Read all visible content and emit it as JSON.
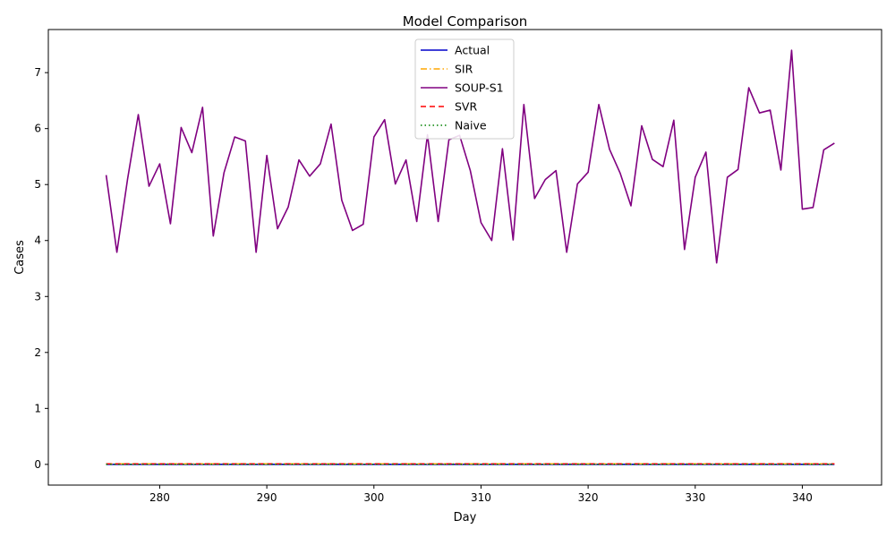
{
  "chart_data": {
    "type": "line",
    "title": "Model Comparison",
    "xlabel": "Day",
    "ylabel": "Cases",
    "xlim": [
      269.6,
      347.4
    ],
    "ylim": [
      -0.37,
      7.77
    ],
    "x_ticks": [
      280,
      290,
      300,
      310,
      320,
      330,
      340
    ],
    "y_ticks": [
      0,
      1,
      2,
      3,
      4,
      5,
      6,
      7
    ],
    "legend_position": "top-center",
    "grid": false,
    "x": [
      275,
      276,
      277,
      278,
      279,
      280,
      281,
      282,
      283,
      284,
      285,
      286,
      287,
      288,
      289,
      290,
      291,
      292,
      293,
      294,
      295,
      296,
      297,
      298,
      299,
      300,
      301,
      302,
      303,
      304,
      305,
      306,
      307,
      308,
      309,
      310,
      311,
      312,
      313,
      314,
      315,
      316,
      317,
      318,
      319,
      320,
      321,
      322,
      323,
      324,
      325,
      326,
      327,
      328,
      329,
      330,
      331,
      332,
      333,
      334,
      335,
      336,
      337,
      338,
      339,
      340,
      341,
      342,
      343
    ],
    "series": [
      {
        "name": "Actual",
        "color": "#0000cc",
        "dash": "solid",
        "values": [
          0,
          0,
          0,
          0,
          0,
          0,
          0,
          0,
          0,
          0,
          0,
          0,
          0,
          0,
          0,
          0,
          0,
          0,
          0,
          0,
          0,
          0,
          0,
          0,
          0,
          0,
          0,
          0,
          0,
          0,
          0,
          0,
          0,
          0,
          0,
          0,
          0,
          0,
          0,
          0,
          0,
          0,
          0,
          0,
          0,
          0,
          0,
          0,
          0,
          0,
          0,
          0,
          0,
          0,
          0,
          0,
          0,
          0,
          0,
          0,
          0,
          0,
          0,
          0,
          0,
          0,
          0,
          0,
          0
        ]
      },
      {
        "name": "SIR",
        "color": "#ffa500",
        "dash": "dashdot",
        "values": [
          0.01,
          0.01,
          0.01,
          0.01,
          0.01,
          0.01,
          0.01,
          0.01,
          0.01,
          0.01,
          0.01,
          0.01,
          0.01,
          0.01,
          0.01,
          0.01,
          0.01,
          0.01,
          0.01,
          0.01,
          0.01,
          0.01,
          0.01,
          0.01,
          0.01,
          0.01,
          0.01,
          0.01,
          0.01,
          0.01,
          0.01,
          0.01,
          0.01,
          0.01,
          0.01,
          0.01,
          0.01,
          0.01,
          0.01,
          0.01,
          0.01,
          0.01,
          0.01,
          0.01,
          0.01,
          0.01,
          0.01,
          0.01,
          0.01,
          0.01,
          0.01,
          0.01,
          0.01,
          0.01,
          0.01,
          0.01,
          0.01,
          0.01,
          0.01,
          0.01,
          0.01,
          0.01,
          0.01,
          0.01,
          0.01,
          0.01,
          0.01,
          0.01,
          0.01
        ]
      },
      {
        "name": "SOUP-S1",
        "color": "#800080",
        "dash": "solid",
        "values": [
          5.17,
          3.79,
          5.1,
          6.25,
          4.97,
          5.37,
          4.3,
          6.02,
          5.57,
          6.38,
          4.08,
          5.21,
          5.85,
          5.78,
          3.79,
          5.52,
          4.21,
          4.6,
          5.44,
          5.15,
          5.37,
          6.08,
          4.72,
          4.18,
          4.29,
          5.85,
          6.16,
          5.01,
          5.44,
          4.34,
          5.89,
          4.34,
          5.8,
          5.88,
          5.25,
          4.32,
          4.0,
          5.64,
          4.01,
          6.43,
          4.75,
          5.09,
          5.25,
          3.79,
          5.01,
          5.22,
          6.43,
          5.63,
          5.2,
          4.62,
          6.05,
          5.45,
          5.32,
          6.15,
          3.84,
          5.13,
          5.58,
          3.6,
          5.13,
          5.27,
          6.73,
          6.28,
          6.33,
          5.26,
          7.4,
          4.56,
          4.59,
          5.62,
          5.74
        ]
      },
      {
        "name": "SVR",
        "color": "#ff0000",
        "dash": "dashed",
        "values": [
          0.01,
          0.01,
          0.01,
          0.01,
          0.01,
          0.01,
          0.01,
          0.01,
          0.01,
          0.01,
          0.01,
          0.01,
          0.01,
          0.01,
          0.01,
          0.01,
          0.01,
          0.01,
          0.01,
          0.01,
          0.01,
          0.01,
          0.01,
          0.01,
          0.01,
          0.01,
          0.01,
          0.01,
          0.01,
          0.01,
          0.01,
          0.01,
          0.01,
          0.01,
          0.01,
          0.01,
          0.01,
          0.01,
          0.01,
          0.01,
          0.01,
          0.01,
          0.01,
          0.01,
          0.01,
          0.01,
          0.01,
          0.01,
          0.01,
          0.01,
          0.01,
          0.01,
          0.01,
          0.01,
          0.01,
          0.01,
          0.01,
          0.01,
          0.01,
          0.01,
          0.01,
          0.01,
          0.01,
          0.01,
          0.01,
          0.01,
          0.01,
          0.01,
          0.01
        ]
      },
      {
        "name": "Naive",
        "color": "#008000",
        "dash": "dotted",
        "values": [
          0,
          0,
          0,
          0,
          0,
          0,
          0,
          0,
          0,
          0,
          0,
          0,
          0,
          0,
          0,
          0,
          0,
          0,
          0,
          0,
          0,
          0,
          0,
          0,
          0,
          0,
          0,
          0,
          0,
          0,
          0,
          0,
          0,
          0,
          0,
          0,
          0,
          0,
          0,
          0,
          0,
          0,
          0,
          0,
          0,
          0,
          0,
          0,
          0,
          0,
          0,
          0,
          0,
          0,
          0,
          0,
          0,
          0,
          0,
          0,
          0,
          0,
          0,
          0,
          0,
          0,
          0,
          0,
          0
        ]
      }
    ]
  }
}
